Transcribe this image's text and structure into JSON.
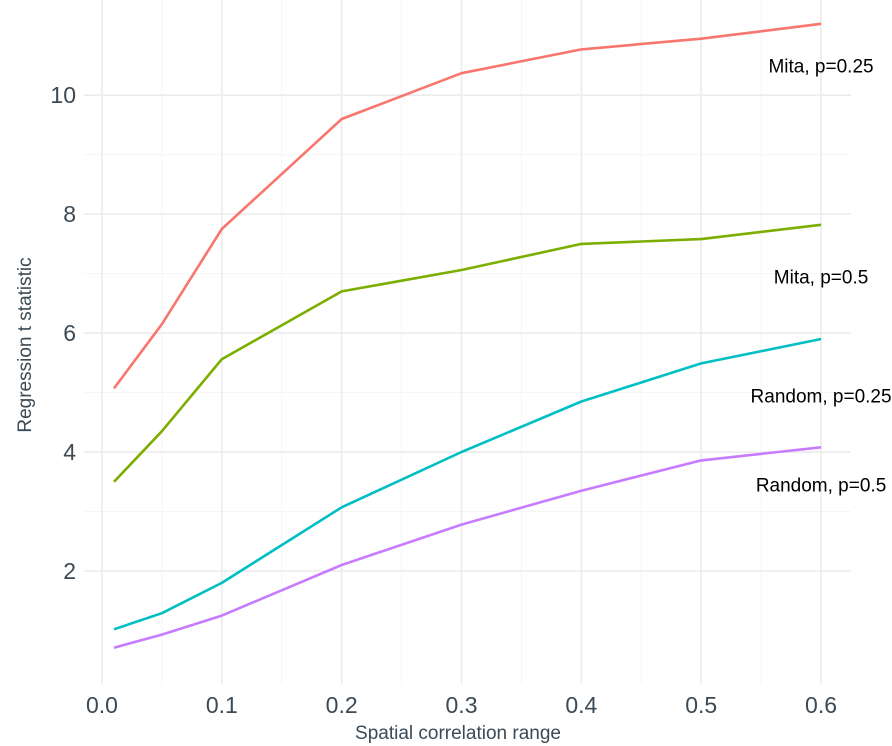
{
  "chart_data": {
    "type": "line",
    "title": "",
    "xlabel": "Spatial correlation range",
    "ylabel": "Regression t statistic",
    "xlim": [
      -0.015,
      0.625
    ],
    "ylim": [
      0.1,
      11.6
    ],
    "x_ticks": [
      0.0,
      0.1,
      0.2,
      0.3,
      0.4,
      0.5,
      0.6
    ],
    "x_tick_labels": [
      "0.0",
      "0.1",
      "0.2",
      "0.3",
      "0.4",
      "0.5",
      "0.6"
    ],
    "y_ticks": [
      2,
      4,
      6,
      8,
      10
    ],
    "y_tick_labels": [
      "2",
      "4",
      "6",
      "8",
      "10"
    ],
    "grid": true,
    "legend": "none (direct labels)",
    "x": [
      0.01,
      0.05,
      0.1,
      0.2,
      0.3,
      0.4,
      0.5,
      0.6
    ],
    "series": [
      {
        "name": "Mita, p=0.25",
        "color": "#F8766D",
        "values": [
          5.07,
          6.15,
          7.75,
          9.6,
          10.37,
          10.77,
          10.95,
          11.2
        ],
        "label_at": [
          0.6,
          10.5
        ]
      },
      {
        "name": "Mita, p=0.5",
        "color": "#7CAE00",
        "values": [
          3.5,
          4.35,
          5.56,
          6.7,
          7.06,
          7.5,
          7.58,
          7.82
        ],
        "label_at": [
          0.6,
          6.95
        ]
      },
      {
        "name": "Random, p=0.25",
        "color": "#00BFC4",
        "values": [
          1.02,
          1.29,
          1.8,
          3.07,
          4.0,
          4.85,
          5.49,
          5.9
        ],
        "label_at": [
          0.6,
          4.95
        ]
      },
      {
        "name": "Random, p=0.5",
        "color": "#C77CFF",
        "values": [
          0.71,
          0.93,
          1.25,
          2.1,
          2.78,
          3.35,
          3.86,
          4.08
        ],
        "label_at": [
          0.6,
          3.45
        ]
      }
    ]
  }
}
